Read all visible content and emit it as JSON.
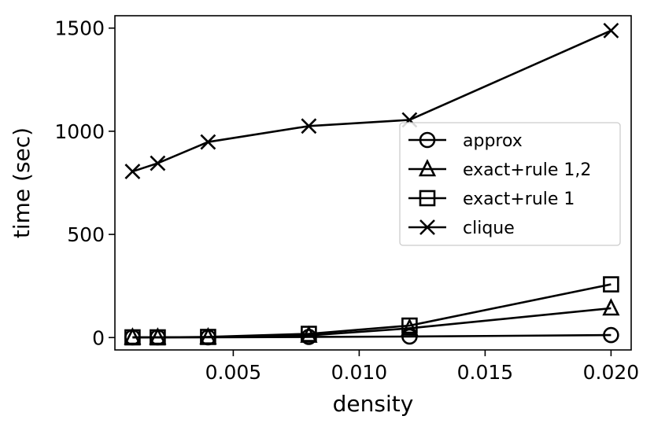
{
  "chart_data": {
    "type": "line",
    "title": "",
    "xlabel": "density",
    "ylabel": "time (sec)",
    "xlim": [
      0.0003,
      0.0208
    ],
    "ylim": [
      -60,
      1560
    ],
    "xticks": [
      0.005,
      0.01,
      0.015,
      0.02
    ],
    "xtick_labels": [
      "0.005",
      "0.010",
      "0.015",
      "0.020"
    ],
    "yticks": [
      0,
      500,
      1000,
      1500
    ],
    "ytick_labels": [
      "0",
      "500",
      "1000",
      "1500"
    ],
    "grid": false,
    "legend_position": "center-right",
    "x": [
      0.001,
      0.002,
      0.004,
      0.008,
      0.012,
      0.02
    ],
    "series": [
      {
        "name": "approx",
        "marker": "circle",
        "values": [
          1,
          1,
          1,
          3,
          5,
          12
        ]
      },
      {
        "name": "exact+rule 1,2",
        "marker": "triangle",
        "values": [
          1,
          1,
          2,
          10,
          45,
          142
        ]
      },
      {
        "name": "exact+rule 1",
        "marker": "square",
        "values": [
          1,
          1,
          3,
          18,
          58,
          258
        ]
      },
      {
        "name": "clique",
        "marker": "x",
        "values": [
          805,
          845,
          948,
          1025,
          1055,
          1488
        ]
      }
    ]
  }
}
